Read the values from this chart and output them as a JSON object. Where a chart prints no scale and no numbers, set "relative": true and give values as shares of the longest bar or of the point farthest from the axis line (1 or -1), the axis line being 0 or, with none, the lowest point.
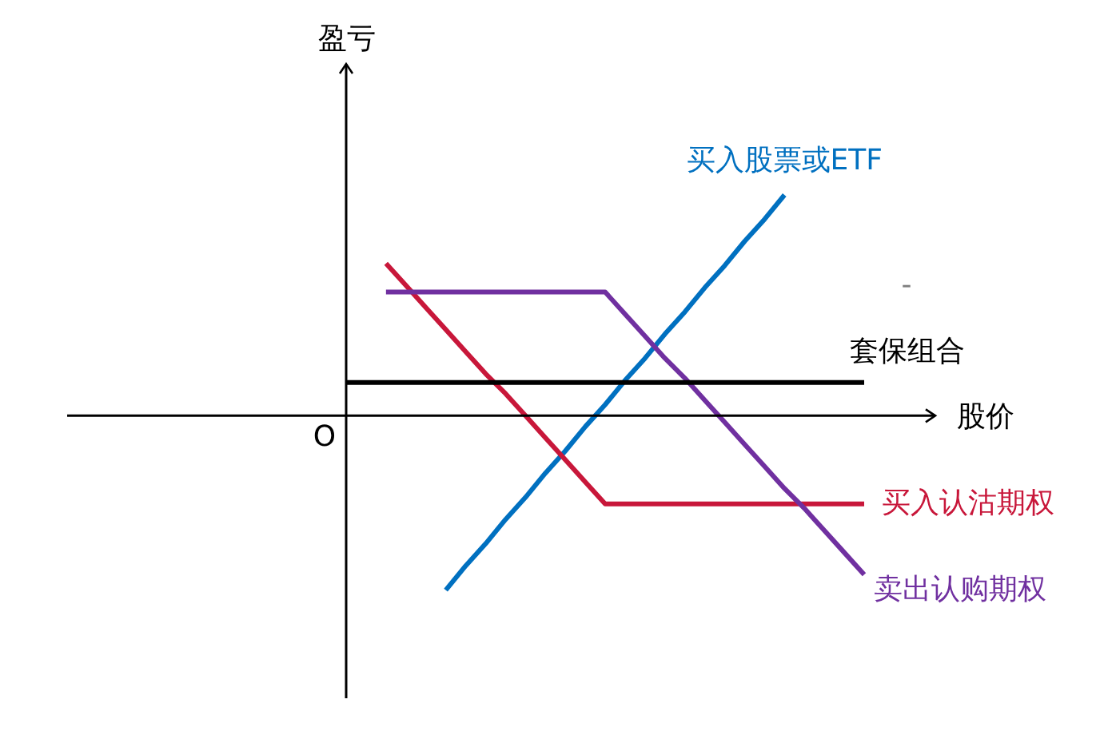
{
  "chart_data": {
    "type": "line",
    "relative": true,
    "xlabel": "股价",
    "ylabel": "盈亏",
    "categories": [
      null,
      null,
      null,
      null,
      null,
      null,
      null,
      null,
      null,
      null,
      null,
      null,
      null,
      null,
      null,
      null,
      null,
      null,
      null,
      null,
      null,
      null,
      null,
      null,
      null,
      null,
      null
    ],
    "series": [
      {
        "name": "买入股票或ETF",
        "color": "#0070c0",
        "values": [
          null,
          null,
          null,
          null,
          null,
          -0.79,
          -0.68,
          -0.58,
          -0.47,
          -0.37,
          -0.26,
          -0.16,
          -0.05,
          0.05,
          0.16,
          0.26,
          0.37,
          0.47,
          0.58,
          0.68,
          0.79,
          0.89,
          1,
          null,
          null,
          null,
          null
        ]
      },
      {
        "name": "买入认沽期权",
        "color": "#c8173a",
        "values": [
          null,
          null,
          0.69,
          0.59,
          0.49,
          0.39,
          0.29,
          0.19,
          0.1,
          0,
          -0.1,
          -0.2,
          -0.3,
          -0.4,
          -0.4,
          -0.4,
          -0.4,
          -0.4,
          -0.4,
          -0.4,
          -0.4,
          -0.4,
          -0.4,
          -0.4,
          -0.4,
          -0.4,
          -0.4
        ]
      },
      {
        "name": "卖出认购期权",
        "color": "#7030a0",
        "values": [
          null,
          null,
          0.56,
          0.56,
          0.56,
          0.56,
          0.56,
          0.56,
          0.56,
          0.56,
          0.56,
          0.56,
          0.56,
          0.56,
          0.46,
          0.36,
          0.26,
          0.17,
          0.07,
          -0.03,
          -0.13,
          -0.23,
          -0.33,
          -0.42,
          -0.52,
          -0.62,
          -0.72
        ]
      },
      {
        "name": "套保组合",
        "color": "#000000",
        "values": [
          0.15,
          0.15,
          0.15,
          0.15,
          0.15,
          0.15,
          0.15,
          0.15,
          0.15,
          0.15,
          0.15,
          0.15,
          0.15,
          0.15,
          0.15,
          0.15,
          0.15,
          0.15,
          0.15,
          0.15,
          0.15,
          0.15,
          0.15,
          0.15,
          0.15,
          0.15,
          0.15
        ]
      }
    ],
    "annotations": [
      "O",
      "-"
    ]
  }
}
